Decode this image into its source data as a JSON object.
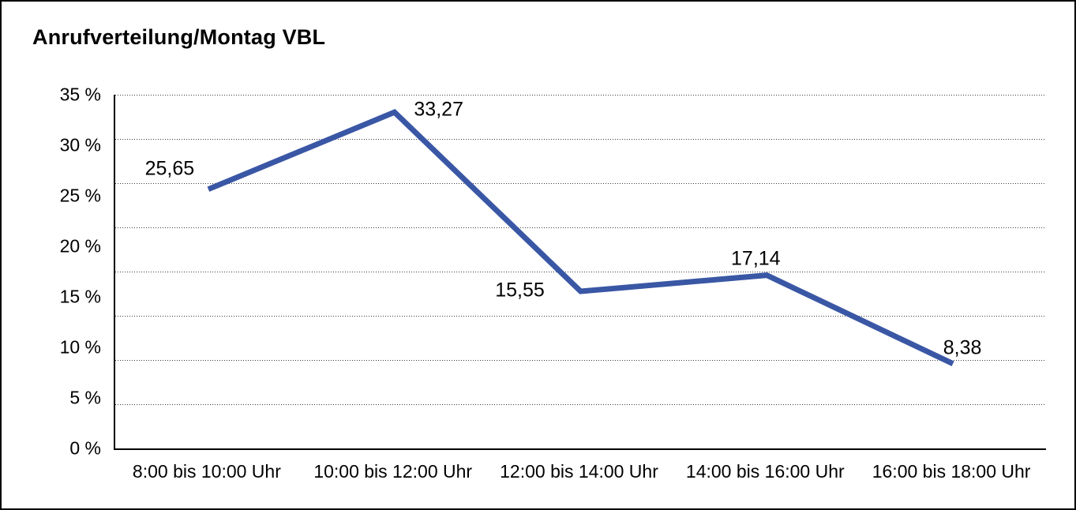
{
  "title": "Anrufverteilung/Montag VBL",
  "chart_data": {
    "type": "line",
    "title": "Anrufverteilung/Montag VBL",
    "categories": [
      "8:00 bis 10:00 Uhr",
      "10:00 bis 12:00 Uhr",
      "12:00 bis 14:00 Uhr",
      "14:00 bis 16:00 Uhr",
      "16:00 bis 18:00 Uhr"
    ],
    "values": [
      25.65,
      33.27,
      15.55,
      17.14,
      8.38
    ],
    "point_labels": [
      "25,65",
      "33,27",
      "15,55",
      "17,14",
      "8,38"
    ],
    "y_ticks": [
      "35 %",
      "30 %",
      "25 %",
      "20 %",
      "15 %",
      "10 %",
      "5 %",
      "0 %"
    ],
    "ylim": [
      0,
      35
    ],
    "xlabel": "",
    "ylabel": "",
    "legend": "none",
    "grid": "horizontal-dotted",
    "line_color": "#3A57A5",
    "axis_color": "#000000",
    "background_color": "#ffffff"
  }
}
